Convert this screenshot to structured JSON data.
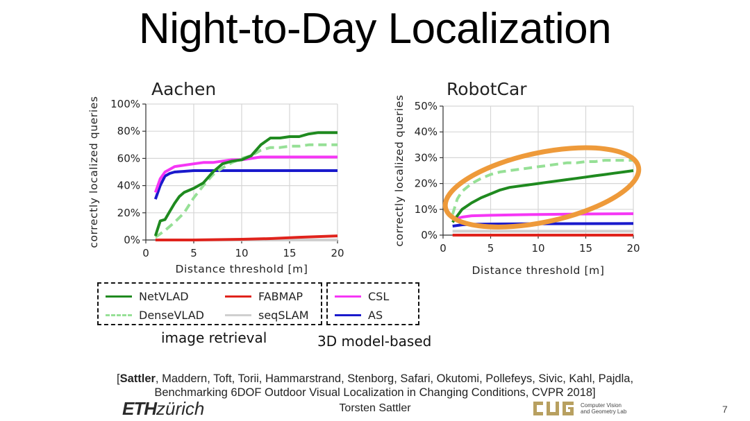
{
  "slide": {
    "title": "Night-to-Day Localization",
    "page_number": "7",
    "presenter": "Torsten Sattler"
  },
  "citation": {
    "lead_author": "Sattler",
    "authors_rest": ", Maddern, Toft, Torii, Hammarstrand, Stenborg, Safari, Okutomi, Pollefeys, Sivic, Kahl, Pajdla,",
    "open_bracket": "[",
    "line2": "Benchmarking 6DOF Outdoor Visual Localization in Changing Conditions, CVPR 2018]"
  },
  "logos": {
    "eth_bold": "ETH",
    "eth_rest": "zürich",
    "cvg_mark": "CVG",
    "cvg_line1": "Computer Vision",
    "cvg_line2": "and Geometry Lab"
  },
  "legend": {
    "entries": [
      {
        "name": "NetVLAD",
        "color": "#1f8a1f",
        "style": "solid"
      },
      {
        "name": "DenseVLAD",
        "color": "#96e096",
        "style": "dashed"
      },
      {
        "name": "FABMAP",
        "color": "#e0231c",
        "style": "solid"
      },
      {
        "name": "seqSLAM",
        "color": "#cfcfcf",
        "style": "solid"
      },
      {
        "name": "CSL",
        "color": "#f536f5",
        "style": "solid"
      },
      {
        "name": "AS",
        "color": "#1a1acc",
        "style": "solid"
      }
    ],
    "group_image_retrieval": "image retrieval",
    "group_3d_model": "3D model-based"
  },
  "chart_data": [
    {
      "type": "line",
      "title": "Aachen",
      "xlabel": "Distance threshold [m]",
      "ylabel": "correctly localized queries",
      "xlim": [
        0,
        20
      ],
      "ylim": [
        0,
        100
      ],
      "xticks": [
        0,
        5,
        10,
        15,
        20
      ],
      "xtick_labels": [
        "0",
        "5",
        "10",
        "15",
        "20"
      ],
      "yticks": [
        0,
        20,
        40,
        60,
        80,
        100
      ],
      "ytick_labels": [
        "0%",
        "20%",
        "40%",
        "60%",
        "80%",
        "100%"
      ],
      "grid": true,
      "series": [
        {
          "name": "NetVLAD",
          "color": "#1f8a1f",
          "dash": false,
          "x": [
            1,
            1.5,
            2,
            2.5,
            3,
            3.5,
            4,
            5,
            6,
            7,
            8,
            9,
            10,
            11,
            12,
            13,
            14,
            15,
            16,
            17,
            18,
            19,
            20
          ],
          "y": [
            3,
            14,
            15,
            21,
            27,
            32,
            35,
            38,
            42,
            50,
            56,
            58,
            59,
            62,
            70,
            75,
            75,
            76,
            76,
            78,
            79,
            79,
            79
          ]
        },
        {
          "name": "DenseVLAD",
          "color": "#96e096",
          "dash": true,
          "x": [
            1,
            2,
            3,
            4,
            5,
            6,
            7,
            8,
            9,
            10,
            11,
            12,
            13,
            14,
            15,
            16,
            17,
            18,
            19,
            20
          ],
          "y": [
            2,
            7,
            13,
            20,
            31,
            40,
            48,
            53,
            57,
            60,
            62,
            66,
            68,
            68,
            69,
            69,
            70,
            70,
            70,
            70
          ]
        },
        {
          "name": "FABMAP",
          "color": "#e0231c",
          "dash": false,
          "x": [
            1,
            5,
            10,
            13,
            16,
            18,
            20
          ],
          "y": [
            0,
            0,
            0.5,
            1,
            2,
            2.5,
            3
          ]
        },
        {
          "name": "seqSLAM",
          "color": "#cfcfcf",
          "dash": false,
          "x": [
            1,
            20
          ],
          "y": [
            0,
            0
          ]
        },
        {
          "name": "CSL",
          "color": "#f536f5",
          "dash": false,
          "x": [
            1,
            1.5,
            2,
            2.5,
            3,
            4,
            5,
            6,
            7,
            8,
            9,
            10,
            12,
            14,
            16,
            18,
            20
          ],
          "y": [
            35,
            45,
            50,
            52,
            54,
            55,
            56,
            57,
            57,
            58,
            59,
            59,
            61,
            61,
            61,
            61,
            61
          ]
        },
        {
          "name": "AS",
          "color": "#1a1acc",
          "dash": false,
          "x": [
            1,
            1.5,
            2,
            2.5,
            3,
            4,
            5,
            10,
            15,
            20
          ],
          "y": [
            30,
            40,
            47,
            49,
            50,
            50.5,
            51,
            51,
            51,
            51
          ]
        }
      ]
    },
    {
      "type": "line",
      "title": "RobotCar",
      "xlabel": "Distance threshold [m]",
      "ylabel": "correctly localized queries",
      "xlim": [
        0,
        20
      ],
      "ylim": [
        0,
        50
      ],
      "xticks": [
        0,
        5,
        10,
        15,
        20
      ],
      "xtick_labels": [
        "0",
        "5",
        "10",
        "15",
        "20"
      ],
      "yticks": [
        0,
        10,
        20,
        30,
        40,
        50
      ],
      "ytick_labels": [
        "0%",
        "10%",
        "20%",
        "30%",
        "40%",
        "50%"
      ],
      "grid": true,
      "annotation": "orange ellipse highlighting NetVLAD and DenseVLAD curves",
      "series": [
        {
          "name": "NetVLAD",
          "color": "#1f8a1f",
          "dash": false,
          "x": [
            1,
            2,
            3,
            4,
            5,
            6,
            7,
            8,
            9,
            10,
            11,
            12,
            13,
            14,
            15,
            16,
            17,
            18,
            19,
            20
          ],
          "y": [
            5,
            10,
            12.5,
            14.5,
            16,
            17.5,
            18.5,
            19,
            19.5,
            20,
            20.5,
            21,
            21.5,
            22,
            22.5,
            23,
            23.5,
            24,
            24.5,
            25
          ]
        },
        {
          "name": "DenseVLAD",
          "color": "#96e096",
          "dash": true,
          "x": [
            1,
            1.5,
            2,
            3,
            4,
            5,
            6,
            7,
            8,
            9,
            10,
            11,
            12,
            13,
            14,
            15,
            16,
            17,
            18,
            19,
            20
          ],
          "y": [
            8,
            14,
            17,
            20,
            22,
            23.5,
            24.5,
            25,
            25.5,
            26,
            26.5,
            27,
            27.5,
            28,
            28,
            28.5,
            28.5,
            29,
            29,
            29,
            29
          ]
        },
        {
          "name": "FABMAP",
          "color": "#e0231c",
          "dash": false,
          "x": [
            1,
            20
          ],
          "y": [
            0,
            0
          ]
        },
        {
          "name": "seqSLAM",
          "color": "#cfcfcf",
          "dash": false,
          "x": [
            1,
            20
          ],
          "y": [
            1.5,
            1.5
          ]
        },
        {
          "name": "CSL",
          "color": "#f536f5",
          "dash": false,
          "x": [
            1,
            2,
            3,
            5,
            8,
            10,
            15,
            20
          ],
          "y": [
            6,
            7,
            7.5,
            7.7,
            7.9,
            8,
            8.2,
            8.3
          ]
        },
        {
          "name": "AS",
          "color": "#1a1acc",
          "dash": false,
          "x": [
            1,
            2,
            3,
            5,
            10,
            20
          ],
          "y": [
            3.5,
            4,
            4.2,
            4.3,
            4.4,
            4.5
          ]
        }
      ]
    }
  ]
}
